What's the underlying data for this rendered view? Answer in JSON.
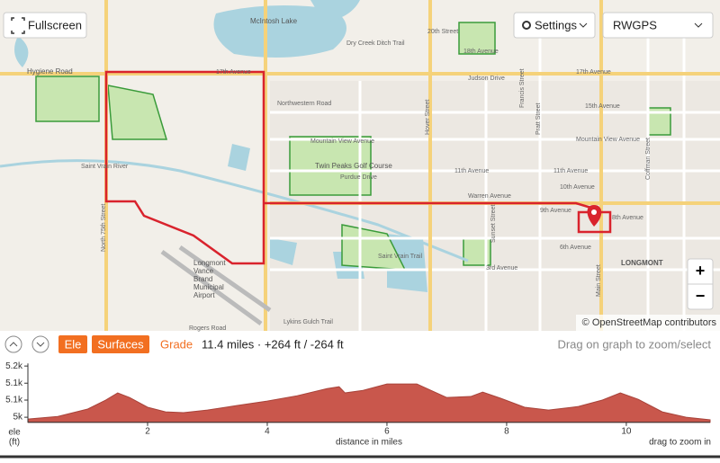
{
  "map": {
    "fullscreen": "Fullscreen",
    "settings": "Settings",
    "layer": "RWGPS",
    "attribution": "© OpenStreetMap contributors",
    "zoom_in": "+",
    "zoom_out": "−",
    "labels": [
      "McIntosh Lake",
      "Hygiene Road",
      "17th Avenue",
      "17th Avenue",
      "Northwestern Road",
      "Mountain View Avenue",
      "Mountain View Avenue",
      "Twin Peaks Golf Course",
      "Purdue Drive",
      "11th Avenue",
      "11th Avenue",
      "Warren Avenue",
      "10th Avenue",
      "9th Avenue",
      "8th Avenue",
      "6th Avenue",
      "3rd Avenue",
      "LONGMONT",
      "Saint Vrain River",
      "Saint Vrain Trail",
      "Lykins Gulch Trail",
      "Rogers Road",
      "North 75th Street",
      "Hover Street",
      "Main Street",
      "Sunset Street",
      "Judson Drive",
      "20th Street",
      "18th Avenue",
      "15th Avenue",
      "Francis Street",
      "Pratt Street",
      "Coffman Street",
      "Dry Creek Ditch Trail"
    ],
    "airport": [
      "Longmont",
      "Vance",
      "Brand",
      "Municipal",
      "Airport"
    ]
  },
  "toolbar": {
    "tabs": [
      "Ele",
      "Surfaces",
      "Grade"
    ],
    "summary": "11.4 miles · +264 ft / -264 ft",
    "hint": "Drag on graph to zoom/select"
  },
  "chart_data": {
    "type": "area",
    "color": "#c9574c",
    "xlabel": "distance in miles",
    "ylabel": "ele",
    "yunit": "(ft)",
    "note": "drag to zoom in",
    "x": [
      0,
      0.5,
      1.0,
      1.3,
      1.5,
      1.7,
      2.0,
      2.3,
      2.6,
      3.0,
      3.5,
      4.0,
      4.5,
      5.0,
      5.2,
      5.3,
      5.6,
      6.0,
      6.5,
      6.8,
      7.0,
      7.4,
      7.6,
      7.9,
      8.3,
      8.7,
      9.2,
      9.6,
      9.9,
      10.2,
      10.6,
      11.0,
      11.4
    ],
    "values": [
      4993,
      5003,
      5032,
      5067,
      5095,
      5077,
      5039,
      5021,
      5018,
      5028,
      5046,
      5063,
      5084,
      5112,
      5119,
      5095,
      5105,
      5130,
      5130,
      5098,
      5077,
      5081,
      5098,
      5074,
      5039,
      5028,
      5042,
      5067,
      5095,
      5070,
      5021,
      5000,
      4990
    ],
    "xlim": [
      0,
      11.4
    ],
    "xticks": [
      2,
      4,
      6,
      8,
      10
    ],
    "ylim": [
      4980,
      5210
    ],
    "yticks": [
      {
        "value": 5000,
        "label": "5k"
      },
      {
        "value": 5067,
        "label": "5.1k"
      },
      {
        "value": 5133,
        "label": "5.1k"
      },
      {
        "value": 5200,
        "label": "5.2k"
      }
    ]
  }
}
